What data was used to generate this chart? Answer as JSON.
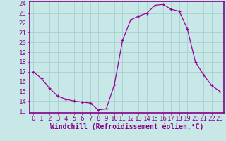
{
  "x": [
    0,
    1,
    2,
    3,
    4,
    5,
    6,
    7,
    8,
    9,
    10,
    11,
    12,
    13,
    14,
    15,
    16,
    17,
    18,
    19,
    20,
    21,
    22,
    23
  ],
  "y": [
    17,
    16.3,
    15.3,
    14.5,
    14.2,
    14.0,
    13.9,
    13.8,
    13.1,
    13.2,
    15.7,
    20.2,
    22.3,
    22.7,
    23.0,
    23.8,
    23.9,
    23.4,
    23.2,
    21.4,
    18.0,
    16.7,
    15.6,
    15.0
  ],
  "line_color": "#990099",
  "marker": "+",
  "marker_size": 3,
  "bg_color": "#c8e8e8",
  "grid_color": "#a8cece",
  "xlabel": "Windchill (Refroidissement éolien,°C)",
  "ylim": [
    13,
    24
  ],
  "xlim": [
    -0.5,
    23.5
  ],
  "yticks": [
    13,
    14,
    15,
    16,
    17,
    18,
    19,
    20,
    21,
    22,
    23,
    24
  ],
  "xticks": [
    0,
    1,
    2,
    3,
    4,
    5,
    6,
    7,
    8,
    9,
    10,
    11,
    12,
    13,
    14,
    15,
    16,
    17,
    18,
    19,
    20,
    21,
    22,
    23
  ],
  "tick_label_fontsize": 6.5,
  "xlabel_fontsize": 7,
  "spine_color": "#880088",
  "axis_bg": "#c8e8e8"
}
